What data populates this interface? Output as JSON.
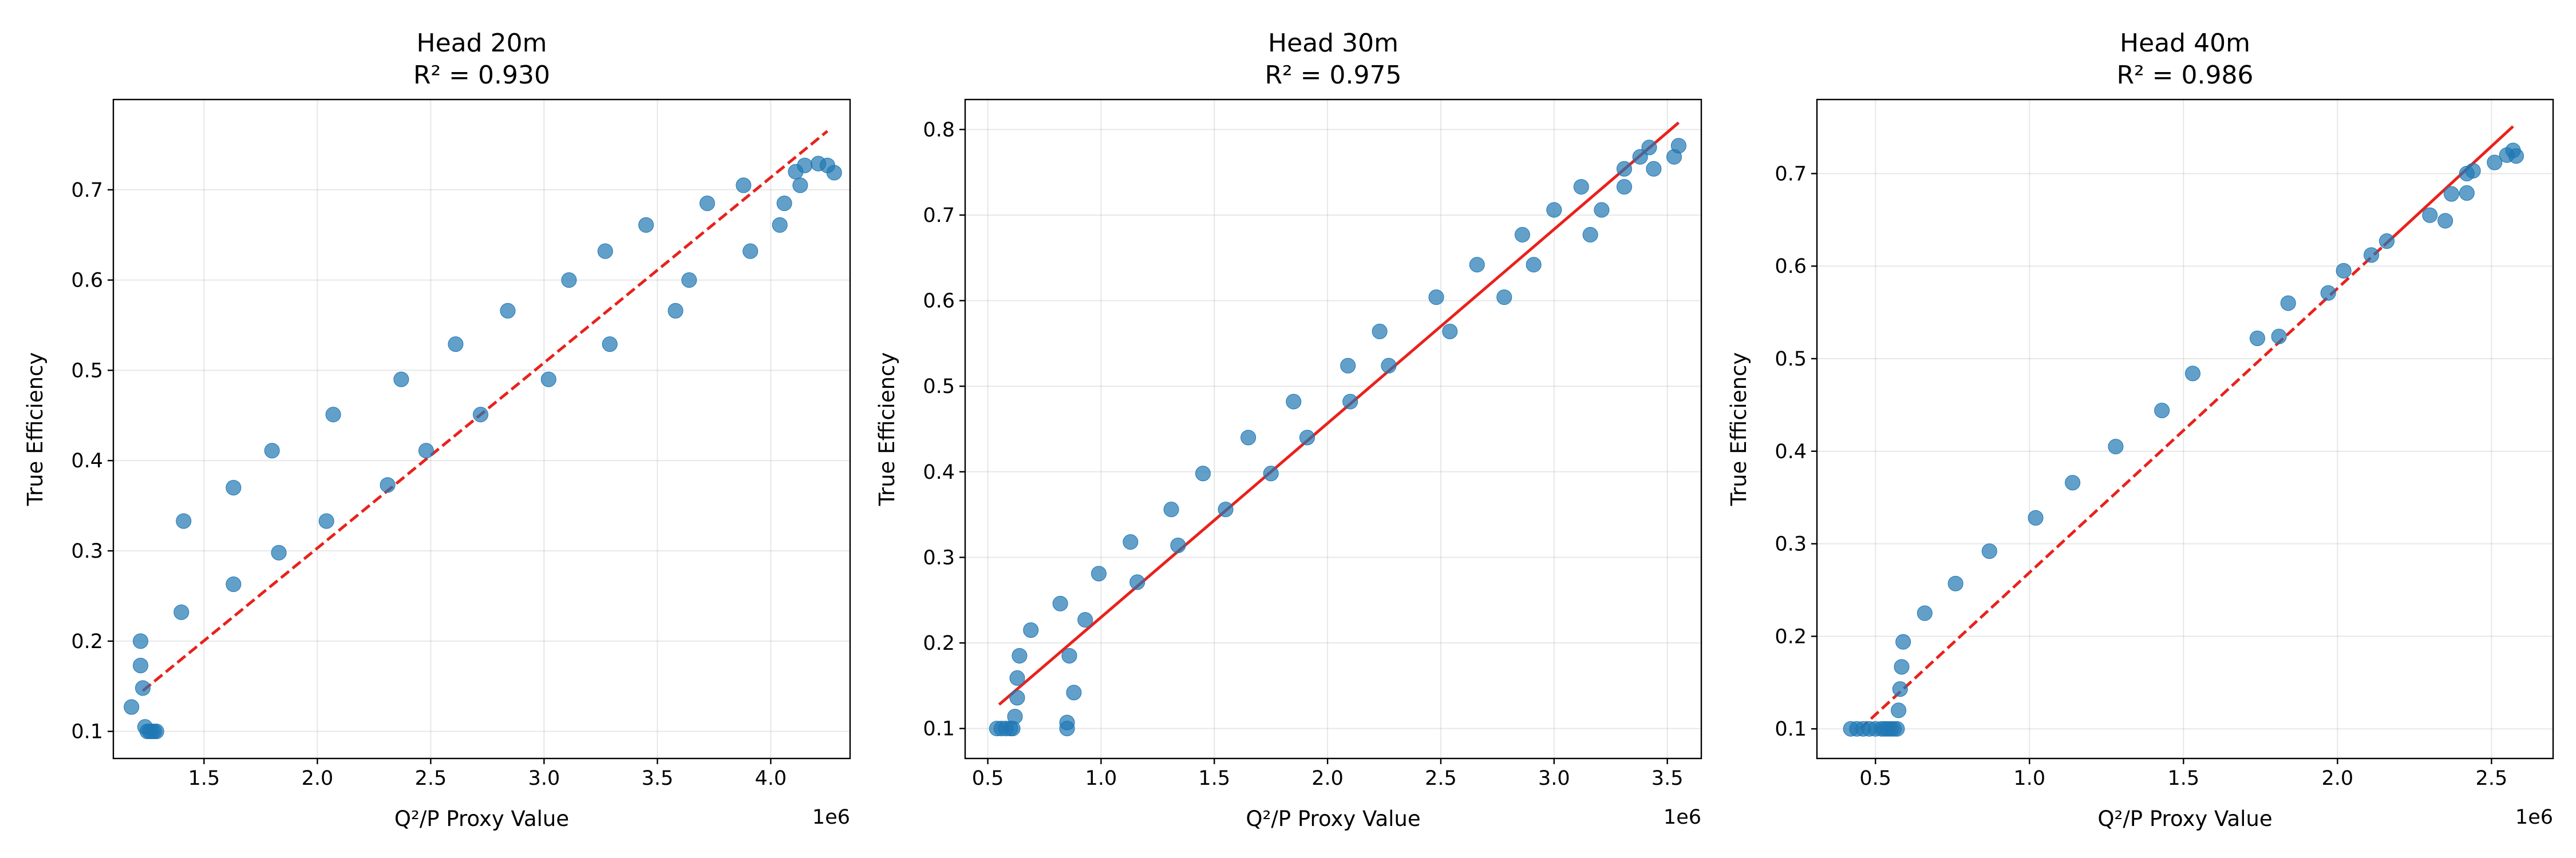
{
  "chart_data": [
    {
      "type": "scatter",
      "title": "Head 20m",
      "subtitle": "R² = 0.930",
      "xlabel": "Q²/P Proxy Value",
      "ylabel": "True Efficiency",
      "x_multiplier": "1e6",
      "xlim": [
        1.1,
        4.35
      ],
      "ylim": [
        0.07,
        0.8
      ],
      "xticks": [
        "1.5",
        "2.0",
        "2.5",
        "3.0",
        "3.5",
        "4.0"
      ],
      "yticks": [
        "0.1",
        "0.2",
        "0.3",
        "0.4",
        "0.5",
        "0.6",
        "0.7"
      ],
      "grid": true,
      "point_color": "#1f77b4",
      "fit_line": {
        "color": "#e8221d",
        "style": "dashed",
        "x": [
          1.23,
          4.25
        ],
        "y": [
          0.145,
          0.765
        ]
      },
      "points": {
        "x": [
          1.18,
          1.22,
          1.22,
          1.23,
          1.24,
          1.25,
          1.26,
          1.27,
          1.28,
          1.29,
          1.4,
          1.41,
          1.63,
          1.63,
          1.8,
          1.83,
          2.04,
          2.07,
          2.31,
          2.37,
          2.48,
          2.61,
          2.72,
          2.84,
          3.02,
          3.11,
          3.27,
          3.29,
          3.45,
          3.58,
          3.64,
          3.72,
          3.88,
          3.91,
          4.04,
          4.06,
          4.11,
          4.13,
          4.15,
          4.21,
          4.25,
          4.28
        ],
        "y": [
          0.127,
          0.2,
          0.173,
          0.148,
          0.105,
          0.1,
          0.1,
          0.1,
          0.1,
          0.1,
          0.232,
          0.333,
          0.263,
          0.37,
          0.411,
          0.298,
          0.333,
          0.451,
          0.373,
          0.49,
          0.411,
          0.529,
          0.451,
          0.566,
          0.49,
          0.6,
          0.632,
          0.529,
          0.661,
          0.566,
          0.6,
          0.685,
          0.705,
          0.632,
          0.661,
          0.685,
          0.72,
          0.705,
          0.727,
          0.729,
          0.727,
          0.719
        ]
      }
    },
    {
      "type": "scatter",
      "title": "Head 30m",
      "subtitle": "R² = 0.975",
      "xlabel": "Q²/P Proxy Value",
      "ylabel": "True Efficiency",
      "x_multiplier": "1e6",
      "xlim": [
        0.4,
        3.65
      ],
      "ylim": [
        0.065,
        0.835
      ],
      "xticks": [
        "0.5",
        "1.0",
        "1.5",
        "2.0",
        "2.5",
        "3.0",
        "3.5"
      ],
      "yticks": [
        "0.1",
        "0.2",
        "0.3",
        "0.4",
        "0.5",
        "0.6",
        "0.7",
        "0.8"
      ],
      "grid": true,
      "point_color": "#1f77b4",
      "fit_line": {
        "color": "#e8221d",
        "style": "solid",
        "x": [
          0.55,
          3.55
        ],
        "y": [
          0.128,
          0.808
        ]
      },
      "points": {
        "x": [
          0.54,
          0.56,
          0.58,
          0.6,
          0.61,
          0.62,
          0.63,
          0.63,
          0.64,
          0.69,
          0.82,
          0.85,
          0.85,
          0.86,
          0.88,
          0.93,
          0.99,
          1.13,
          1.16,
          1.31,
          1.34,
          1.45,
          1.55,
          1.65,
          1.75,
          1.85,
          1.91,
          2.09,
          2.1,
          2.23,
          2.27,
          2.48,
          2.54,
          2.66,
          2.78,
          2.86,
          2.91,
          3.0,
          3.12,
          3.16,
          3.21,
          3.31,
          3.31,
          3.38,
          3.42,
          3.44,
          3.53,
          3.55
        ],
        "y": [
          0.1,
          0.1,
          0.1,
          0.1,
          0.1,
          0.114,
          0.136,
          0.159,
          0.185,
          0.215,
          0.246,
          0.107,
          0.1,
          0.185,
          0.142,
          0.227,
          0.281,
          0.318,
          0.271,
          0.356,
          0.314,
          0.398,
          0.356,
          0.44,
          0.398,
          0.482,
          0.44,
          0.524,
          0.482,
          0.564,
          0.524,
          0.604,
          0.564,
          0.642,
          0.604,
          0.677,
          0.642,
          0.706,
          0.733,
          0.677,
          0.706,
          0.754,
          0.733,
          0.768,
          0.779,
          0.754,
          0.768,
          0.781
        ]
      }
    },
    {
      "type": "scatter",
      "title": "Head 40m",
      "subtitle": "R² = 0.986",
      "xlabel": "Q²/P Proxy Value",
      "ylabel": "True Efficiency",
      "x_multiplier": "1e6",
      "xlim": [
        0.31,
        2.7
      ],
      "ylim": [
        0.068,
        0.78
      ],
      "xticks": [
        "0.5",
        "1.0",
        "1.5",
        "2.0",
        "2.5"
      ],
      "yticks": [
        "0.1",
        "0.2",
        "0.3",
        "0.4",
        "0.5",
        "0.6",
        "0.7"
      ],
      "grid": true,
      "point_color": "#1f77b4",
      "fit_line": {
        "color": "#e8221d",
        "style": "dashed-then-solid",
        "switch_x": 2.15,
        "x": [
          0.45,
          2.57
        ],
        "y": [
          0.1,
          0.751
        ]
      },
      "points": {
        "x": [
          0.42,
          0.44,
          0.46,
          0.48,
          0.5,
          0.52,
          0.53,
          0.54,
          0.55,
          0.56,
          0.57,
          0.575,
          0.58,
          0.585,
          0.59,
          0.66,
          0.76,
          0.87,
          1.02,
          1.14,
          1.28,
          1.43,
          1.53,
          1.74,
          1.81,
          1.84,
          1.97,
          2.02,
          2.11,
          2.16,
          2.3,
          2.35,
          2.37,
          2.42,
          2.42,
          2.44,
          2.51,
          2.55,
          2.57,
          2.58
        ],
        "y": [
          0.1,
          0.1,
          0.1,
          0.1,
          0.1,
          0.1,
          0.1,
          0.1,
          0.1,
          0.1,
          0.1,
          0.12,
          0.143,
          0.167,
          0.194,
          0.225,
          0.257,
          0.292,
          0.328,
          0.366,
          0.405,
          0.444,
          0.484,
          0.522,
          0.524,
          0.56,
          0.571,
          0.595,
          0.612,
          0.627,
          0.655,
          0.649,
          0.678,
          0.679,
          0.7,
          0.703,
          0.712,
          0.72,
          0.725,
          0.719
        ]
      }
    }
  ]
}
